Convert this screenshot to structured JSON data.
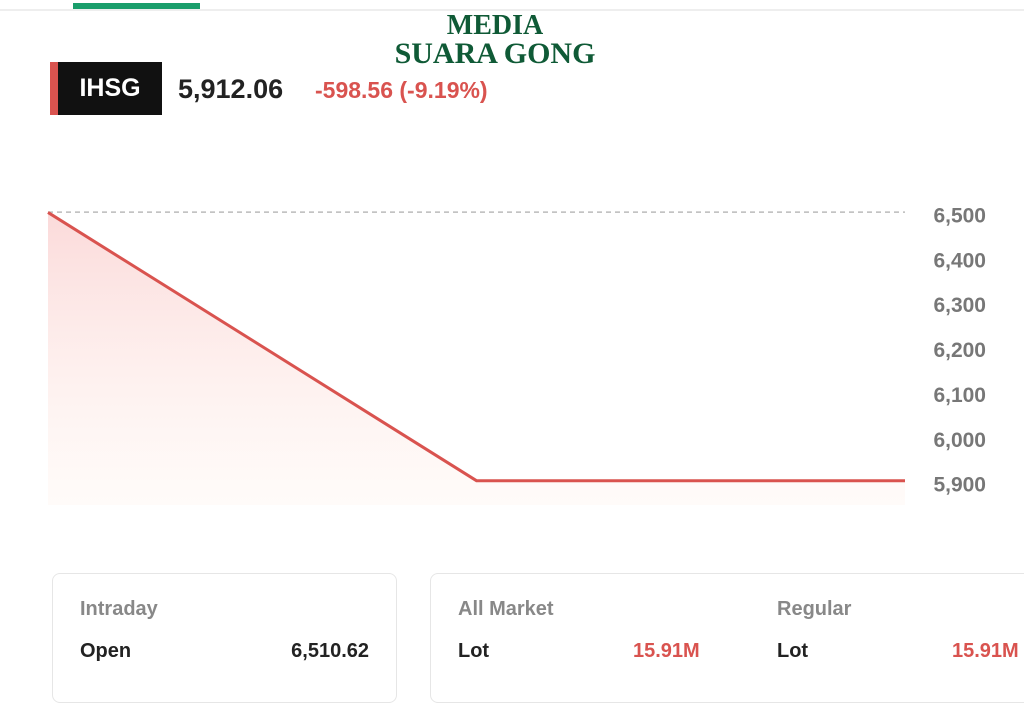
{
  "watermark": {
    "line1": "MEDIA",
    "line2": "SUARA GONG"
  },
  "ticker": {
    "symbol": "IHSG",
    "price": "5,912.06",
    "change": "-598.56 (-9.19%)"
  },
  "chart_data": {
    "type": "line",
    "categories": [
      null,
      null,
      null
    ],
    "values": [
      6510,
      5912,
      5912
    ],
    "color": "#d9534f",
    "reference_line": 6510.62,
    "ylim": [
      5840,
      6540
    ],
    "yticks": [
      {
        "value": 5900,
        "label": "5,900"
      },
      {
        "value": 6000,
        "label": "6,000"
      },
      {
        "value": 6100,
        "label": "6,100"
      },
      {
        "value": 6200,
        "label": "6,200"
      },
      {
        "value": 6300,
        "label": "6,300"
      },
      {
        "value": 6400,
        "label": "6,400"
      },
      {
        "value": 6500,
        "label": "6,500"
      }
    ],
    "grid": false
  },
  "stats": {
    "intraday": {
      "title": "Intraday",
      "label": "Open",
      "value": "6,510.62"
    },
    "all_market": {
      "title": "All Market",
      "label": "Lot",
      "value": "15.91M"
    },
    "regular": {
      "title": "Regular",
      "label": "Lot",
      "value": "15.91M"
    }
  }
}
